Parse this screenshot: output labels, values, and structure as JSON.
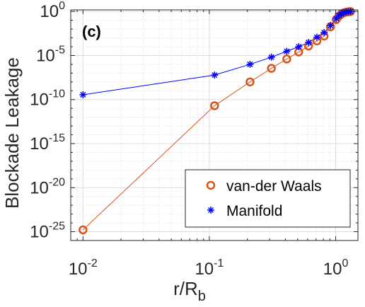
{
  "chart_data": {
    "type": "line",
    "panel_label": "(c)",
    "xlabel": "r/R",
    "xlabel_sub": "b",
    "ylabel": "Blockade Leakage",
    "xscale": "log",
    "yscale": "log",
    "xlim": [
      0.008,
      1.5
    ],
    "ylim": [
      1e-26,
      1.5
    ],
    "grid": true,
    "legend_position": "bottom-right",
    "x_ticks": [
      {
        "base": "10",
        "exp": "-2",
        "value": 0.01
      },
      {
        "base": "10",
        "exp": "-1",
        "value": 0.1
      },
      {
        "base": "10",
        "exp": "0",
        "value": 1
      }
    ],
    "y_ticks": [
      {
        "base": "10",
        "exp": "0",
        "value": 1
      },
      {
        "base": "10",
        "exp": "-5",
        "value": 1e-05
      },
      {
        "base": "10",
        "exp": "-10",
        "value": 1e-10
      },
      {
        "base": "10",
        "exp": "-15",
        "value": 1e-15
      },
      {
        "base": "10",
        "exp": "-20",
        "value": 1e-20
      },
      {
        "base": "10",
        "exp": "-25",
        "value": 1e-25
      }
    ],
    "series": [
      {
        "name": "van-der Waals",
        "color": "#d95319",
        "marker": "circle",
        "x": [
          0.01,
          0.11,
          0.21,
          0.31,
          0.41,
          0.51,
          0.61,
          0.71,
          0.81,
          0.91,
          1.01,
          1.06,
          1.11,
          1.16,
          1.21,
          1.26,
          1.31
        ],
        "y": [
          1.6e-25,
          2e-11,
          1e-08,
          3.5e-07,
          4e-06,
          2.5e-05,
          0.00012,
          0.00045,
          0.0016,
          0.018,
          0.12,
          0.3,
          0.5,
          0.7,
          0.85,
          0.93,
          0.97
        ]
      },
      {
        "name": "Manifold",
        "color": "#0000ff",
        "marker": "asterisk",
        "x": [
          0.01,
          0.11,
          0.21,
          0.31,
          0.41,
          0.51,
          0.61,
          0.71,
          0.81,
          0.91,
          1.01,
          1.06,
          1.11,
          1.16,
          1.21,
          1.26,
          1.31
        ],
        "y": [
          3.5e-10,
          6e-08,
          1e-06,
          6.5e-06,
          3e-05,
          0.0001,
          0.0003,
          0.0012,
          0.004,
          0.025,
          0.15,
          0.33,
          0.55,
          0.72,
          0.86,
          0.94,
          0.98
        ]
      }
    ]
  }
}
